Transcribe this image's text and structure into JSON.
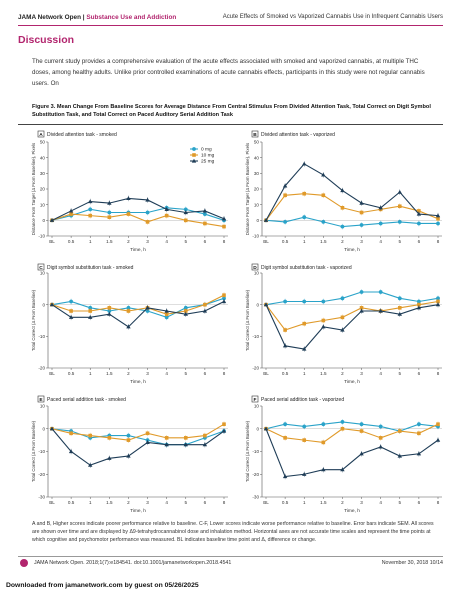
{
  "header": {
    "journal": "JAMA Network Open",
    "separator": " | ",
    "section": "Substance Use and Addiction",
    "article_title": "Acute Effects of Smoked vs Vaporized Cannabis Use in Infrequent Cannabis Users"
  },
  "discussion": {
    "heading": "Discussion",
    "text": "The current study provides a comprehensive evaluation of the acute effects associated with smoked and vaporized cannabis, at multiple THC doses, among healthy adults. Unlike prior controlled examinations of acute cannabis effects, participants in this study were not regular cannabis users. On"
  },
  "figure": {
    "caption": "Figure 3. Mean Change From Baseline Scores for Average Distance From Central Stimulus From Divided Attention Task, Total Correct on Digit Symbol Substitution Task, and Total Correct on Paced Auditory Serial Addition Task",
    "footnote": "A and B, Higher scores indicate poorer performance relative to baseline. C-F, Lower scores indicate worse performance relative to baseline. Error bars indicate SEM. All scores are shown over time and are displayed by Δ9-tetrahydrocannabinol dose and inhalation method. Horizontal axes are not accurate time scales and represent the time points at which cognitive and psychomotor performance was measured. BL indicates baseline time point and Δ, difference or change."
  },
  "legend": {
    "items": [
      {
        "label": "0 mg",
        "color": "#2aa3c9",
        "marker": "circle"
      },
      {
        "label": "10 mg",
        "color": "#e09a2a",
        "marker": "square"
      },
      {
        "label": "25 mg",
        "color": "#1f3d57",
        "marker": "triangle"
      }
    ]
  },
  "chart_data": [
    {
      "panel": "A",
      "title": "Divided attention task - smoked",
      "type": "line",
      "x": [
        "BL",
        "0.5",
        "1",
        "1.5",
        "2",
        "3",
        "4",
        "5",
        "6",
        "8"
      ],
      "xlabel": "Time, h",
      "ylabel": "Distance From Target (Δ From Baseline), Pixels",
      "ylim": [
        -10,
        50
      ],
      "yticks": [
        -10,
        0,
        10,
        20,
        30,
        40,
        50
      ],
      "legend": "top-right",
      "series": [
        {
          "name": "0 mg",
          "values": [
            0,
            3,
            7,
            5,
            5,
            5,
            8,
            7,
            4,
            0
          ]
        },
        {
          "name": "10 mg",
          "values": [
            0,
            4,
            3,
            2,
            4,
            -1,
            3,
            0,
            -2,
            -4
          ]
        },
        {
          "name": "25 mg",
          "values": [
            0,
            6,
            12,
            11,
            14,
            13,
            7,
            5,
            6,
            1
          ]
        }
      ]
    },
    {
      "panel": "B",
      "title": "Divided attention task - vaporized",
      "type": "line",
      "x": [
        "BL",
        "0.5",
        "1",
        "1.5",
        "2",
        "3",
        "4",
        "5",
        "6",
        "8"
      ],
      "xlabel": "Time, h",
      "ylabel": "Distance From Target (Δ From Baseline), Pixels",
      "ylim": [
        -10,
        50
      ],
      "yticks": [
        -10,
        0,
        10,
        20,
        30,
        40,
        50
      ],
      "series": [
        {
          "name": "0 mg",
          "values": [
            0,
            -1,
            2,
            -1,
            -4,
            -3,
            -2,
            -1,
            -2,
            -2
          ]
        },
        {
          "name": "10 mg",
          "values": [
            0,
            16,
            17,
            16,
            8,
            5,
            7,
            9,
            6,
            1
          ]
        },
        {
          "name": "25 mg",
          "values": [
            0,
            22,
            36,
            29,
            19,
            11,
            8,
            18,
            4,
            3
          ]
        }
      ]
    },
    {
      "panel": "C",
      "title": "Digit symbol substitution task - smoked",
      "type": "line",
      "x": [
        "BL",
        "0.5",
        "1",
        "1.5",
        "2",
        "3",
        "4",
        "5",
        "6",
        "8"
      ],
      "xlabel": "Time, h",
      "ylabel": "Total Correct (Δ From Baseline)",
      "ylim": [
        -20,
        10
      ],
      "yticks": [
        -20,
        -10,
        0,
        10
      ],
      "series": [
        {
          "name": "0 mg",
          "values": [
            0,
            1,
            -1,
            -2,
            -1,
            -2,
            -4,
            -1,
            0,
            2
          ]
        },
        {
          "name": "10 mg",
          "values": [
            0,
            -2,
            -2,
            -1,
            -2,
            -1,
            -3,
            -2,
            0,
            3
          ]
        },
        {
          "name": "25 mg",
          "values": [
            0,
            -4,
            -4,
            -3,
            -7,
            -1,
            -2,
            -3,
            -2,
            1
          ]
        }
      ]
    },
    {
      "panel": "D",
      "title": "Digit symbol substitution task - vaporized",
      "type": "line",
      "x": [
        "BL",
        "0.5",
        "1",
        "1.5",
        "2",
        "3",
        "4",
        "5",
        "6",
        "8"
      ],
      "xlabel": "Time, h",
      "ylabel": "Total Correct (Δ From Baseline)",
      "ylim": [
        -20,
        10
      ],
      "yticks": [
        -20,
        -10,
        0,
        10
      ],
      "series": [
        {
          "name": "0 mg",
          "values": [
            0,
            1,
            1,
            1,
            2,
            4,
            4,
            2,
            1,
            2
          ]
        },
        {
          "name": "10 mg",
          "values": [
            0,
            -8,
            -6,
            -5,
            -4,
            -1,
            -2,
            -1,
            0,
            1
          ]
        },
        {
          "name": "25 mg",
          "values": [
            0,
            -13,
            -14,
            -7,
            -8,
            -2,
            -2,
            -3,
            -1,
            0
          ]
        }
      ]
    },
    {
      "panel": "E",
      "title": "Paced serial addition task - smoked",
      "type": "line",
      "x": [
        "BL",
        "0.5",
        "1",
        "1.5",
        "2",
        "3",
        "4",
        "5",
        "6",
        "8"
      ],
      "xlabel": "Time, h",
      "ylabel": "Total Correct (Δ From Baseline)",
      "ylim": [
        -30,
        10
      ],
      "yticks": [
        -30,
        -20,
        -10,
        0,
        10
      ],
      "series": [
        {
          "name": "0 mg",
          "values": [
            0,
            -1,
            -4,
            -3,
            -3,
            -5,
            -7,
            -7,
            -4,
            -1
          ]
        },
        {
          "name": "10 mg",
          "values": [
            0,
            -2,
            -3,
            -4,
            -5,
            -2,
            -4,
            -4,
            -3,
            2
          ]
        },
        {
          "name": "25 mg",
          "values": [
            0,
            -10,
            -16,
            -13,
            -12,
            -6,
            -7,
            -7,
            -7,
            -1
          ]
        }
      ]
    },
    {
      "panel": "F",
      "title": "Paced serial addition task - vaporized",
      "type": "line",
      "x": [
        "BL",
        "0.5",
        "1",
        "1.5",
        "2",
        "3",
        "4",
        "5",
        "6",
        "8"
      ],
      "xlabel": "Time, h",
      "ylabel": "Total Correct (Δ From Baseline)",
      "ylim": [
        -30,
        10
      ],
      "yticks": [
        -30,
        -20,
        -10,
        0,
        10
      ],
      "series": [
        {
          "name": "0 mg",
          "values": [
            0,
            2,
            1,
            2,
            3,
            2,
            1,
            -1,
            2,
            1
          ]
        },
        {
          "name": "10 mg",
          "values": [
            0,
            -4,
            -5,
            -6,
            0,
            -1,
            -4,
            -1,
            -2,
            2
          ]
        },
        {
          "name": "25 mg",
          "values": [
            0,
            -21,
            -20,
            -18,
            -18,
            -11,
            -8,
            -12,
            -11,
            -5
          ]
        }
      ]
    }
  ],
  "footer": {
    "citation": "JAMA Network Open. 2018;1(7):e184541. doi:10.1001/jamanetworkopen.2018.4541",
    "date_page": "November 30, 2018      10/14",
    "download": "Downloaded from jamanetwork.com by guest on 05/26/2025"
  }
}
